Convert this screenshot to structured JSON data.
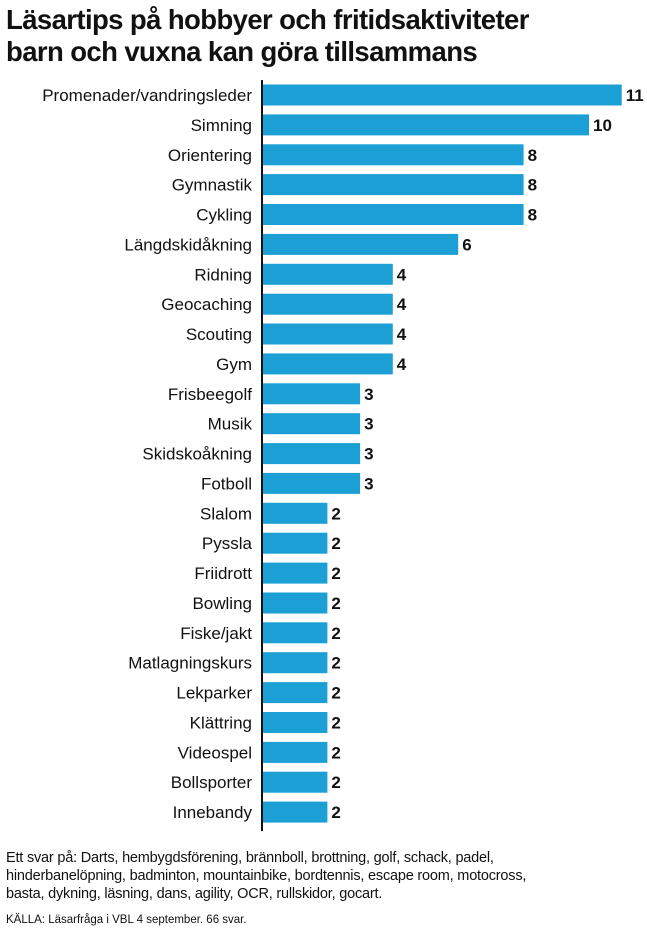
{
  "header": {
    "title_line1": "Läsartips på hobbyer och fritidsaktiviteter",
    "title_line2": "barn och vuxna kan göra tillsammans"
  },
  "chart_data": {
    "type": "bar",
    "orientation": "horizontal",
    "categories": [
      "Promenader/vandringsleder",
      "Simning",
      "Orientering",
      "Gymnastik",
      "Cykling",
      "Längdskidåkning",
      "Ridning",
      "Geocaching",
      "Scouting",
      "Gym",
      "Frisbeegolf",
      "Musik",
      "Skidskoåkning",
      "Fotboll",
      "Slalom",
      "Pyssla",
      "Friidrott",
      "Bowling",
      "Fiske/jakt",
      "Matlagningskurs",
      "Lekparker",
      "Klättring",
      "Videospel",
      "Bollsporter",
      "Innebandy"
    ],
    "values": [
      11,
      10,
      8,
      8,
      8,
      6,
      4,
      4,
      4,
      4,
      3,
      3,
      3,
      3,
      2,
      2,
      2,
      2,
      2,
      2,
      2,
      2,
      2,
      2,
      2
    ],
    "xlim": [
      0,
      11
    ],
    "bar_color": "#1b9fd4",
    "axis_color": "#111111",
    "grid": false,
    "legend": "none",
    "value_labels": true
  },
  "footnote": {
    "line1": "Ett svar på: Darts, hembygdsförening, brännboll, brottning, golf, schack, padel,",
    "line2": "hinderbanelöpning, badminton, mountainbike, bordtennis, escape room, motocross,",
    "line3": "basta, dykning, läsning, dans, agility, OCR, rullskidor, gocart."
  },
  "source": {
    "text": "KÄLLA: Läsarfråga i VBL 4 september. 66 svar."
  }
}
